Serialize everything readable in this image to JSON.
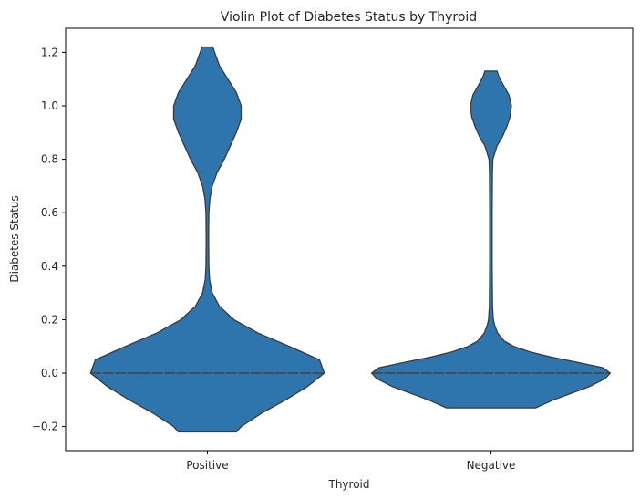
{
  "chart_data": {
    "type": "violin",
    "title": "Violin Plot of Diabetes Status by Thyroid",
    "xlabel": "Thyroid",
    "ylabel": "Diabetes Status",
    "categories": [
      "Positive",
      "Negative"
    ],
    "ylim": [
      -0.29,
      1.29
    ],
    "yticks": [
      -0.2,
      0.0,
      0.2,
      0.4,
      0.6,
      0.8,
      1.0,
      1.2
    ],
    "ytick_labels": [
      "−0.2",
      "0.0",
      "0.2",
      "0.4",
      "0.6",
      "0.8",
      "1.0",
      "1.2"
    ],
    "grid": false,
    "color": "#2e75ad",
    "edge_color": "#3a3a3a",
    "violins": [
      {
        "category": "Positive",
        "median": 0.0,
        "y_range": [
          -0.22,
          1.22
        ],
        "profile": [
          [
            -0.22,
            0.24
          ],
          [
            -0.2,
            0.28
          ],
          [
            -0.15,
            0.45
          ],
          [
            -0.1,
            0.65
          ],
          [
            -0.05,
            0.83
          ],
          [
            0.0,
            0.97
          ],
          [
            0.05,
            0.93
          ],
          [
            0.1,
            0.68
          ],
          [
            0.15,
            0.42
          ],
          [
            0.2,
            0.22
          ],
          [
            0.25,
            0.1
          ],
          [
            0.3,
            0.04
          ],
          [
            0.35,
            0.018
          ],
          [
            0.4,
            0.012
          ],
          [
            0.5,
            0.01
          ],
          [
            0.6,
            0.012
          ],
          [
            0.65,
            0.02
          ],
          [
            0.7,
            0.04
          ],
          [
            0.75,
            0.08
          ],
          [
            0.8,
            0.14
          ],
          [
            0.85,
            0.19
          ],
          [
            0.9,
            0.24
          ],
          [
            0.95,
            0.28
          ],
          [
            1.0,
            0.28
          ],
          [
            1.05,
            0.24
          ],
          [
            1.1,
            0.17
          ],
          [
            1.15,
            0.1
          ],
          [
            1.2,
            0.06
          ],
          [
            1.22,
            0.045
          ]
        ]
      },
      {
        "category": "Negative",
        "median": 0.0,
        "y_range": [
          -0.13,
          1.13
        ],
        "profile": [
          [
            -0.13,
            0.37
          ],
          [
            -0.1,
            0.52
          ],
          [
            -0.07,
            0.7
          ],
          [
            -0.05,
            0.82
          ],
          [
            -0.02,
            0.95
          ],
          [
            0.0,
            0.99
          ],
          [
            0.02,
            0.93
          ],
          [
            0.04,
            0.72
          ],
          [
            0.06,
            0.5
          ],
          [
            0.08,
            0.32
          ],
          [
            0.1,
            0.19
          ],
          [
            0.12,
            0.11
          ],
          [
            0.15,
            0.055
          ],
          [
            0.18,
            0.03
          ],
          [
            0.2,
            0.02
          ],
          [
            0.25,
            0.013
          ],
          [
            0.4,
            0.01
          ],
          [
            0.6,
            0.01
          ],
          [
            0.75,
            0.012
          ],
          [
            0.8,
            0.016
          ],
          [
            0.85,
            0.05
          ],
          [
            0.88,
            0.09
          ],
          [
            0.92,
            0.13
          ],
          [
            0.96,
            0.16
          ],
          [
            1.0,
            0.17
          ],
          [
            1.04,
            0.15
          ],
          [
            1.08,
            0.1
          ],
          [
            1.11,
            0.065
          ],
          [
            1.13,
            0.05
          ]
        ]
      }
    ]
  }
}
